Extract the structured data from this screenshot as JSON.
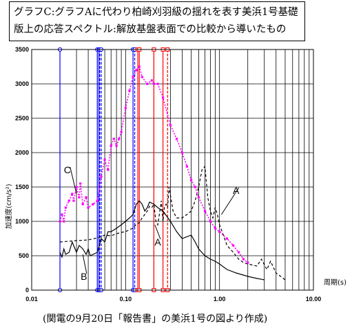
{
  "title_lines": [
    "グラフC:グラフAに代わり柏崎刈羽級の揺れを表す美浜1号基礎",
    "版上の応答スペクトル:解放基盤表面での比較から導いたもの"
  ],
  "caption": "(関電の9月20日「報告書」の美浜1号の図より作成)",
  "chart_data": {
    "type": "line",
    "x_scale": "log",
    "xlim": [
      0.01,
      10
    ],
    "ylim": [
      0,
      3500
    ],
    "xlabel": "周期(s)",
    "ylabel": "加速度(cm/s²)",
    "y_ticks": [
      "0",
      "500",
      "1000",
      "1500",
      "2000",
      "2500",
      "3000",
      "3500"
    ],
    "x_ticks": [
      {
        "value": 0.01,
        "label": "0.01"
      },
      {
        "value": 0.1,
        "label": "0.10"
      },
      {
        "value": 1,
        "label": "1.00"
      },
      {
        "value": 10,
        "label": "10.00"
      }
    ],
    "grid": true,
    "series": [
      {
        "name": "A",
        "style": "dashed",
        "color": "#000000",
        "points": [
          [
            0.02,
            700
          ],
          [
            0.03,
            720
          ],
          [
            0.04,
            730
          ],
          [
            0.05,
            760
          ],
          [
            0.06,
            800
          ],
          [
            0.07,
            790
          ],
          [
            0.08,
            820
          ],
          [
            0.09,
            840
          ],
          [
            0.1,
            850
          ],
          [
            0.11,
            880
          ],
          [
            0.12,
            900
          ],
          [
            0.13,
            960
          ],
          [
            0.14,
            980
          ],
          [
            0.15,
            1050
          ],
          [
            0.16,
            1100
          ],
          [
            0.17,
            1150
          ],
          [
            0.18,
            1220
          ],
          [
            0.19,
            1200
          ],
          [
            0.2,
            1250
          ],
          [
            0.21,
            1000
          ],
          [
            0.22,
            950
          ],
          [
            0.23,
            1120
          ],
          [
            0.24,
            1300
          ],
          [
            0.25,
            1000
          ],
          [
            0.26,
            1220
          ],
          [
            0.27,
            1250
          ],
          [
            0.28,
            1200
          ],
          [
            0.29,
            1500
          ],
          [
            0.3,
            1380
          ],
          [
            0.32,
            1150
          ],
          [
            0.35,
            1050
          ],
          [
            0.4,
            1050
          ],
          [
            0.45,
            1100
          ],
          [
            0.5,
            1150
          ],
          [
            0.55,
            1300
          ],
          [
            0.6,
            1500
          ],
          [
            0.65,
            1750
          ],
          [
            0.7,
            1800
          ],
          [
            0.75,
            1350
          ],
          [
            0.8,
            1150
          ],
          [
            0.85,
            1050
          ],
          [
            0.9,
            1200
          ],
          [
            0.95,
            1100
          ],
          [
            1.0,
            950
          ],
          [
            1.1,
            800
          ],
          [
            1.2,
            650
          ],
          [
            1.4,
            550
          ],
          [
            1.6,
            450
          ],
          [
            1.8,
            400
          ],
          [
            2.0,
            380
          ],
          [
            2.5,
            350
          ],
          [
            2.8,
            450
          ],
          [
            3.2,
            300
          ],
          [
            3.5,
            420
          ],
          [
            4.0,
            250
          ],
          [
            5.0,
            150
          ]
        ]
      },
      {
        "name": "B",
        "style": "solid",
        "color": "#000000",
        "points": [
          [
            0.02,
            550
          ],
          [
            0.021,
            480
          ],
          [
            0.022,
            600
          ],
          [
            0.023,
            520
          ],
          [
            0.025,
            550
          ],
          [
            0.027,
            700
          ],
          [
            0.03,
            550
          ],
          [
            0.032,
            650
          ],
          [
            0.035,
            600
          ],
          [
            0.038,
            520
          ],
          [
            0.04,
            600
          ],
          [
            0.042,
            500
          ],
          [
            0.045,
            520
          ],
          [
            0.05,
            550
          ],
          [
            0.055,
            750
          ],
          [
            0.06,
            700
          ],
          [
            0.065,
            850
          ],
          [
            0.07,
            850
          ],
          [
            0.08,
            900
          ],
          [
            0.09,
            950
          ],
          [
            0.1,
            1000
          ],
          [
            0.11,
            1050
          ],
          [
            0.12,
            1100
          ],
          [
            0.13,
            1250
          ],
          [
            0.14,
            1300
          ],
          [
            0.15,
            1250
          ],
          [
            0.16,
            1150
          ],
          [
            0.17,
            1200
          ],
          [
            0.18,
            1280
          ],
          [
            0.2,
            1250
          ],
          [
            0.22,
            1200
          ],
          [
            0.25,
            1150
          ],
          [
            0.3,
            1000
          ],
          [
            0.35,
            850
          ],
          [
            0.4,
            750
          ],
          [
            0.5,
            800
          ],
          [
            0.55,
            700
          ],
          [
            0.6,
            600
          ],
          [
            0.7,
            500
          ],
          [
            0.8,
            450
          ],
          [
            0.9,
            420
          ],
          [
            1.0,
            380
          ],
          [
            1.2,
            300
          ],
          [
            1.5,
            250
          ],
          [
            2.0,
            200
          ],
          [
            2.5,
            170
          ],
          [
            3.0,
            150
          ]
        ]
      },
      {
        "name": "C",
        "style": "dotted-marker",
        "color": "#ff00ff",
        "points": [
          [
            0.02,
            1000
          ],
          [
            0.021,
            1100
          ],
          [
            0.022,
            1000
          ],
          [
            0.023,
            1200
          ],
          [
            0.025,
            1300
          ],
          [
            0.027,
            1400
          ],
          [
            0.028,
            1300
          ],
          [
            0.03,
            1500
          ],
          [
            0.032,
            1350
          ],
          [
            0.033,
            1550
          ],
          [
            0.035,
            1250
          ],
          [
            0.038,
            1350
          ],
          [
            0.04,
            1200
          ],
          [
            0.045,
            1250
          ],
          [
            0.05,
            1300
          ],
          [
            0.055,
            1650
          ],
          [
            0.06,
            1900
          ],
          [
            0.065,
            1750
          ],
          [
            0.07,
            2100
          ],
          [
            0.075,
            2200
          ],
          [
            0.08,
            2100
          ],
          [
            0.085,
            2200
          ],
          [
            0.09,
            2300
          ],
          [
            0.1,
            2650
          ],
          [
            0.11,
            2900
          ],
          [
            0.12,
            3100
          ],
          [
            0.13,
            3200
          ],
          [
            0.14,
            3250
          ],
          [
            0.15,
            3100
          ],
          [
            0.17,
            3000
          ],
          [
            0.19,
            3050
          ],
          [
            0.2,
            3000
          ],
          [
            0.22,
            3000
          ],
          [
            0.25,
            2800
          ],
          [
            0.3,
            2400
          ],
          [
            0.35,
            2200
          ],
          [
            0.4,
            2000
          ],
          [
            0.45,
            1800
          ],
          [
            0.5,
            1600
          ],
          [
            0.55,
            1500
          ],
          [
            0.6,
            1350
          ],
          [
            0.7,
            1150
          ],
          [
            0.8,
            1000
          ],
          [
            0.9,
            900
          ],
          [
            1.0,
            850
          ],
          [
            1.2,
            750
          ],
          [
            1.4,
            650
          ],
          [
            1.6,
            550
          ],
          [
            1.8,
            450
          ],
          [
            2.0,
            400
          ]
        ]
      }
    ],
    "vertical_markers": [
      {
        "x": 0.02,
        "color": "#0000ff",
        "style": "solid"
      },
      {
        "x": 0.05,
        "color": "#0000ff",
        "style": "solid"
      },
      {
        "x": 0.052,
        "color": "#0000ff",
        "style": "solid"
      },
      {
        "x": 0.053,
        "color": "#0000ff",
        "style": "dashed"
      },
      {
        "x": 0.055,
        "color": "#0000ff",
        "style": "dashed"
      },
      {
        "x": 0.12,
        "color": "#0000ff",
        "style": "solid"
      },
      {
        "x": 0.125,
        "color": "#0000ff",
        "style": "dashed"
      },
      {
        "x": 0.135,
        "color": "#ff0000",
        "style": "solid"
      },
      {
        "x": 0.14,
        "color": "#ff0000",
        "style": "solid"
      },
      {
        "x": 0.2,
        "color": "#ff0000",
        "style": "solid"
      },
      {
        "x": 0.25,
        "color": "#ff0000",
        "style": "solid"
      },
      {
        "x": 0.28,
        "color": "#ff0000",
        "style": "dashed"
      }
    ],
    "annotations": [
      {
        "text": "A",
        "x": 0.22,
        "y": 700,
        "target_x": 0.205,
        "target_y": 950
      },
      {
        "text": "A",
        "x": 1.5,
        "y": 1450,
        "target_x": 1.05,
        "target_y": 1100
      },
      {
        "text": "B",
        "x": 0.036,
        "y": 200,
        "target_x": 0.035,
        "target_y": 520
      },
      {
        "text": "C",
        "x": 0.024,
        "y": 1750,
        "target_x": 0.03,
        "target_y": 1400
      }
    ]
  }
}
